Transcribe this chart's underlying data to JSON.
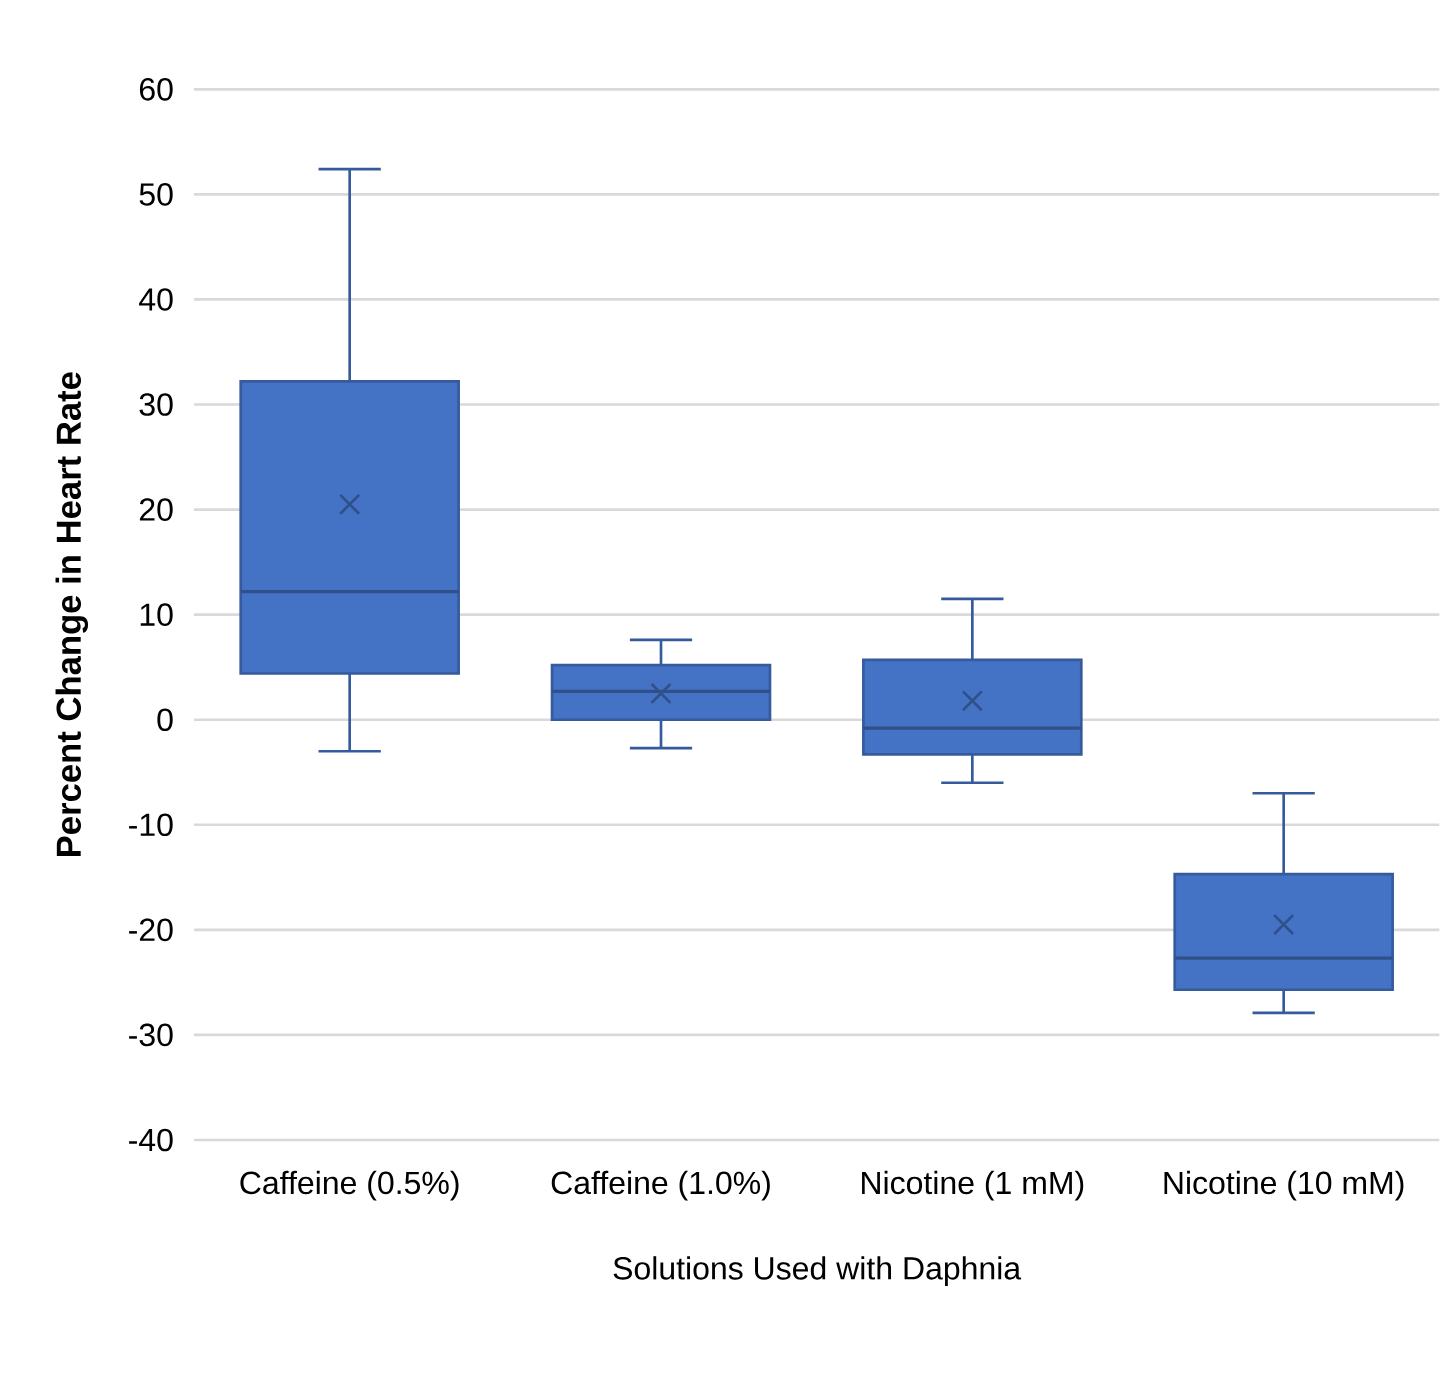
{
  "chart_data": {
    "type": "box",
    "xlabel": "Solutions Used with Daphnia",
    "ylabel": "Percent Change in Heart Rate",
    "categories": [
      "Caffeine (0.5%)",
      "Caffeine (1.0%)",
      "Nicotine (1 mM)",
      "Nicotine (10 mM)"
    ],
    "boxes": [
      {
        "low": -3.0,
        "q1": 4.4,
        "median": 12.2,
        "q3": 32.2,
        "high": 52.4,
        "mean": 20.5
      },
      {
        "low": -2.7,
        "q1": 0.0,
        "median": 2.7,
        "q3": 5.2,
        "high": 7.6,
        "mean": 2.5
      },
      {
        "low": -6.0,
        "q1": -3.3,
        "median": -0.8,
        "q3": 5.7,
        "high": 11.5,
        "mean": 1.8
      },
      {
        "low": -27.9,
        "q1": -25.7,
        "median": -22.7,
        "q3": -14.7,
        "high": -7.0,
        "mean": -19.5
      }
    ],
    "color": "#4472c4",
    "ylim": [
      -40,
      60
    ],
    "yticks": [
      -40,
      -30,
      -20,
      -10,
      0,
      10,
      20,
      30,
      40,
      50,
      60
    ],
    "grid": "y"
  }
}
